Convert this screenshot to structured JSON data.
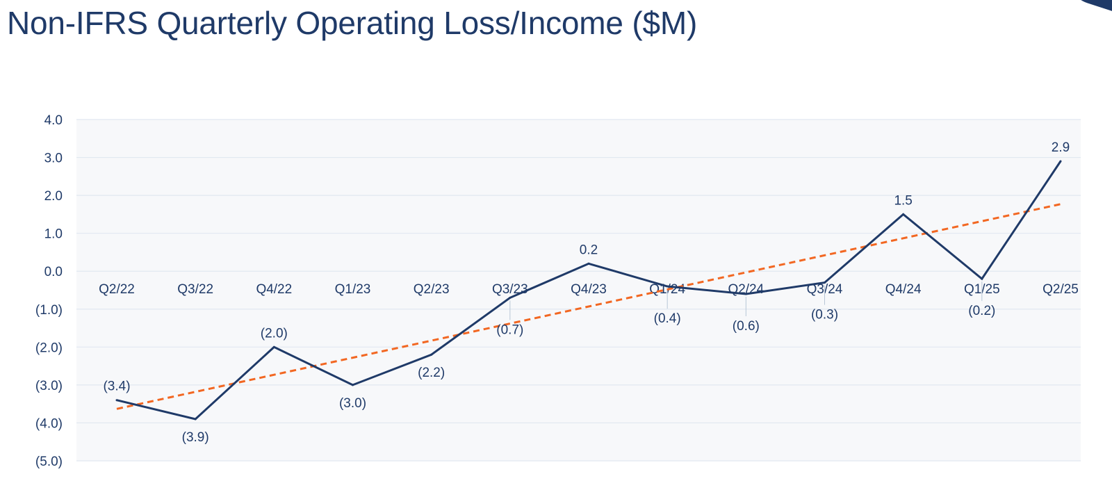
{
  "title": "Non-IFRS Quarterly Operating Loss/Income ($M)",
  "colors": {
    "line": "#1f3a68",
    "trend": "#f26722",
    "plot_bg": "#f7f8fa",
    "grid": "#e1e8f0",
    "text": "#1f3a68"
  },
  "chart_data": {
    "type": "line",
    "categories": [
      "Q2/22",
      "Q3/22",
      "Q4/22",
      "Q1/23",
      "Q2/23",
      "Q3/23",
      "Q4/23",
      "Q1/24",
      "Q2/24",
      "Q3/24",
      "Q4/24",
      "Q1/25",
      "Q2/25"
    ],
    "series": [
      {
        "values": [
          -3.4,
          -3.9,
          -2.0,
          -3.0,
          -2.2,
          -0.7,
          0.2,
          -0.4,
          -0.6,
          -0.3,
          1.5,
          -0.2,
          2.9
        ],
        "data_labels": [
          "(3.4)",
          "(3.9)",
          "(2.0)",
          "(3.0)",
          "(2.2)",
          "(0.7)",
          "0.2",
          "(0.4)",
          "(0.6)",
          "(0.3)",
          "1.5",
          "(0.2)",
          "2.9"
        ]
      }
    ],
    "trendline": {
      "type": "linear",
      "style": "dashed"
    },
    "ylim": [
      -5.0,
      4.0
    ],
    "y_ticks": [
      4.0,
      3.0,
      2.0,
      1.0,
      0.0,
      -1.0,
      -2.0,
      -3.0,
      -4.0,
      -5.0
    ],
    "y_tick_labels": [
      "4.0",
      "3.0",
      "2.0",
      "1.0",
      "0.0",
      "(1.0)",
      "(2.0)",
      "(3.0)",
      "(4.0)",
      "(5.0)"
    ],
    "grid": true,
    "legend": "none"
  }
}
